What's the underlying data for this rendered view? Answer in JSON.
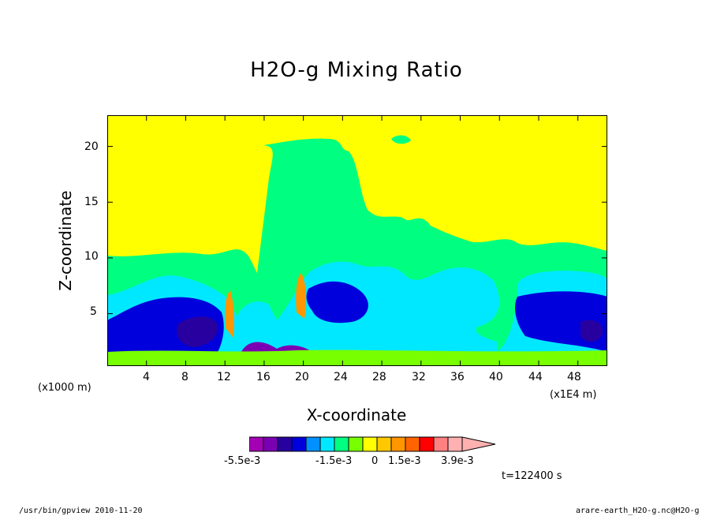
{
  "chart_data": {
    "type": "heatmap",
    "title": "H2O-g Mixing Ratio",
    "xlabel": "X-coordinate",
    "ylabel": "Z-coordinate",
    "x_unit_left": "(x1000 m)",
    "x_unit_right": "(x1E4 m)",
    "x_ticks": [
      4,
      8,
      12,
      16,
      20,
      24,
      28,
      32,
      36,
      40,
      44,
      48
    ],
    "y_ticks": [
      5,
      10,
      15,
      20
    ],
    "xlim": [
      0,
      51
    ],
    "ylim": [
      0.3,
      22.8
    ],
    "colorbar": {
      "colors": [
        "#a400b4",
        "#7b00b4",
        "#2800a0",
        "#0000dc",
        "#0090ff",
        "#00e8ff",
        "#00ff80",
        "#78ff00",
        "#ffff00",
        "#ffc800",
        "#ff9600",
        "#ff6400",
        "#ff0000",
        "#ff8080",
        "#ffb0b0"
      ],
      "labels": [
        "-5.5e-3",
        "-1.5e-3",
        "0",
        "1.5e-3",
        "3.9e-3"
      ]
    },
    "regions": {
      "yellow": "#ffff00",
      "green": "#00ff80",
      "lightgreen": "#78ff00",
      "cyan": "#00e8ff",
      "blue": "#0000dc",
      "navy": "#2800a0",
      "purple": "#7b00b4",
      "orange": "#ff9600"
    }
  },
  "time_label": "t=122400 s",
  "footer_left": "/usr/bin/gpview  2010-11-20",
  "footer_right": "arare-earth_H2O-g.nc@H2O-g"
}
